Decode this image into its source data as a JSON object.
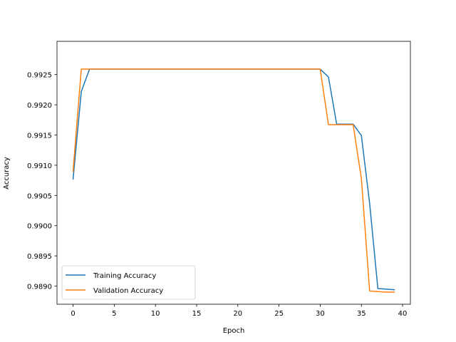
{
  "chart_data": {
    "type": "line",
    "title": "",
    "xlabel": "Epoch",
    "ylabel": "Accuracy",
    "xlim": [
      -1.95,
      40.95
    ],
    "ylim": [
      0.9887,
      0.99305
    ],
    "xticks": [
      0,
      5,
      10,
      15,
      20,
      25,
      30,
      35,
      40
    ],
    "yticks": [
      0.989,
      0.9895,
      0.99,
      0.9905,
      0.991,
      0.9915,
      0.992,
      0.9925
    ],
    "xtick_labels": [
      "0",
      "5",
      "10",
      "15",
      "20",
      "25",
      "30",
      "35",
      "40"
    ],
    "ytick_labels": [
      "0.9890",
      "0.9895",
      "0.9900",
      "0.9905",
      "0.9910",
      "0.9915",
      "0.9920",
      "0.9925"
    ],
    "grid": false,
    "legend_position": "lower-left",
    "x": [
      0,
      1,
      2,
      3,
      4,
      5,
      6,
      7,
      8,
      9,
      10,
      11,
      12,
      13,
      14,
      15,
      16,
      17,
      18,
      19,
      20,
      21,
      22,
      23,
      24,
      25,
      26,
      27,
      28,
      29,
      30,
      31,
      32,
      33,
      34,
      35,
      36,
      37,
      38,
      39
    ],
    "series": [
      {
        "name": "Training Accuracy",
        "color": "#1f77b4",
        "values": [
          0.99077,
          0.99222,
          0.99259,
          0.99259,
          0.99259,
          0.99259,
          0.99259,
          0.99259,
          0.99259,
          0.99259,
          0.99259,
          0.99259,
          0.99259,
          0.99259,
          0.99259,
          0.99259,
          0.99259,
          0.99259,
          0.99259,
          0.99259,
          0.99259,
          0.99259,
          0.99259,
          0.99259,
          0.99259,
          0.99259,
          0.99259,
          0.99259,
          0.99259,
          0.99259,
          0.99259,
          0.99246,
          0.99168,
          0.99168,
          0.99168,
          0.99149,
          0.99037,
          0.98896,
          0.98895,
          0.98894
        ]
      },
      {
        "name": "Validation Accuracy",
        "color": "#ff7f0e",
        "values": [
          0.9909,
          0.99259,
          0.99259,
          0.99259,
          0.99259,
          0.99259,
          0.99259,
          0.99259,
          0.99259,
          0.99259,
          0.99259,
          0.99259,
          0.99259,
          0.99259,
          0.99259,
          0.99259,
          0.99259,
          0.99259,
          0.99259,
          0.99259,
          0.99259,
          0.99259,
          0.99259,
          0.99259,
          0.99259,
          0.99259,
          0.99259,
          0.99259,
          0.99259,
          0.99259,
          0.99259,
          0.99167,
          0.99167,
          0.99167,
          0.99167,
          0.99078,
          0.98892,
          0.98891,
          0.9889,
          0.9889
        ]
      }
    ]
  }
}
